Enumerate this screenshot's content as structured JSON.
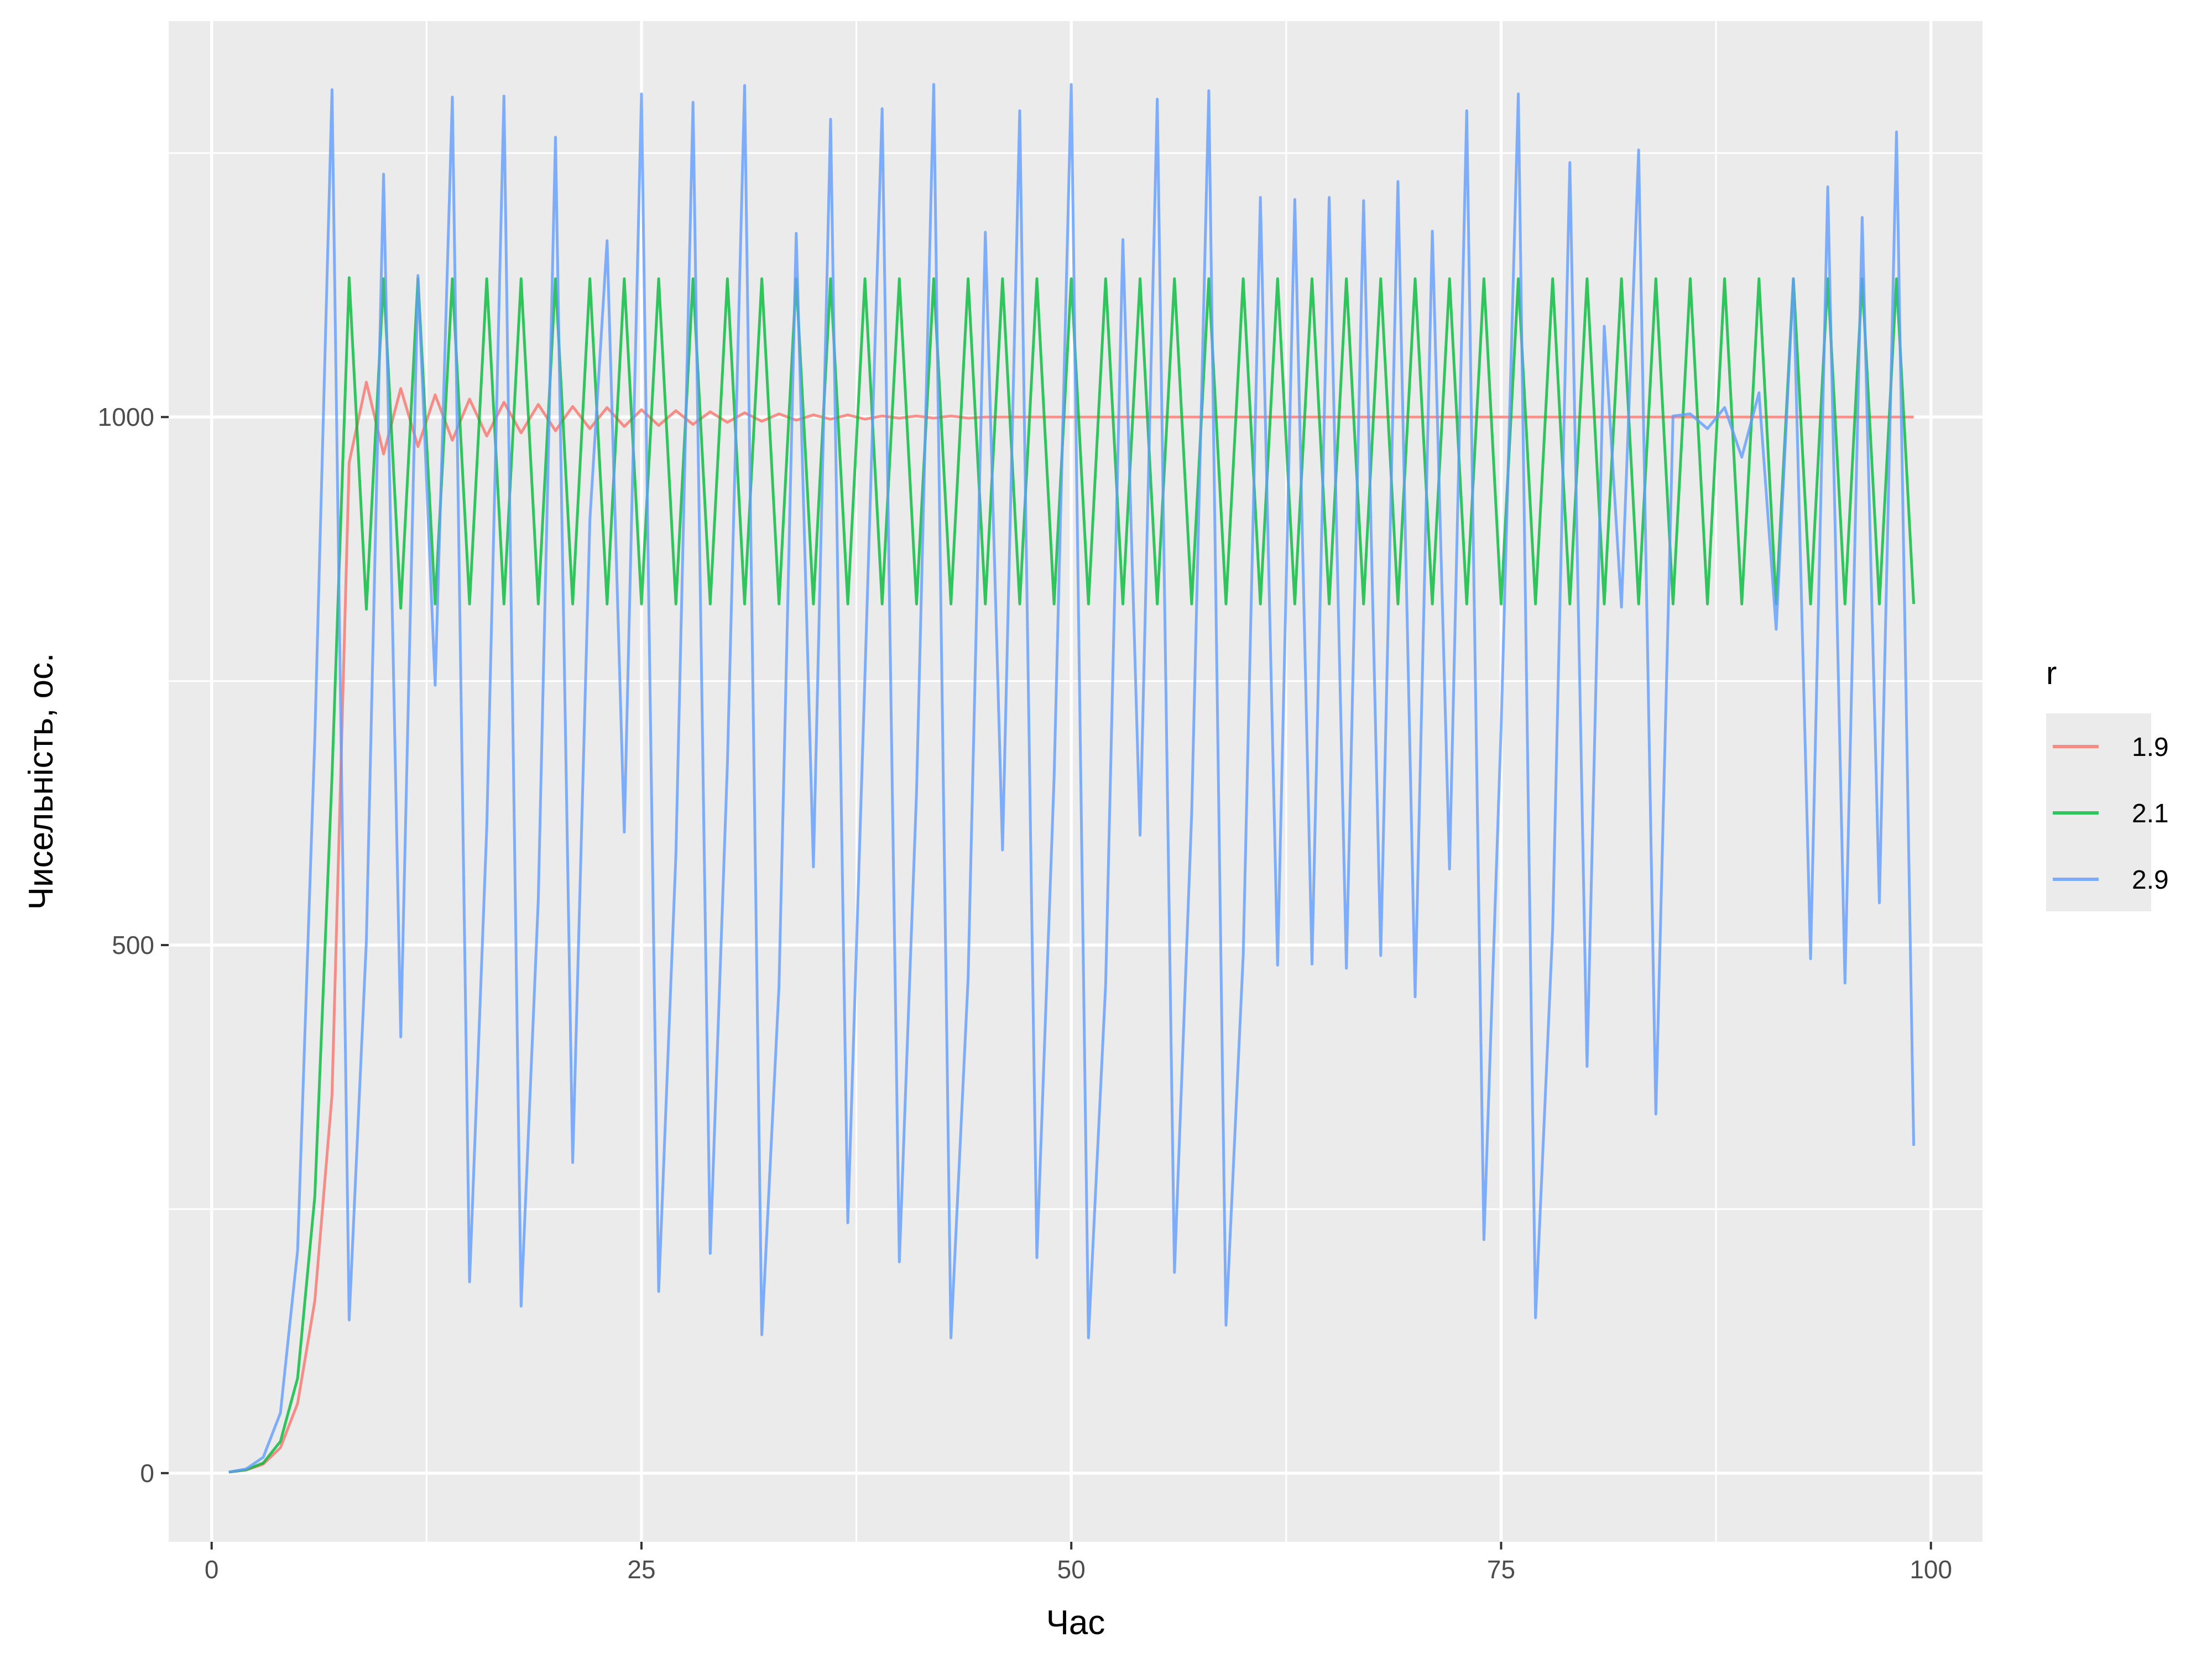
{
  "chart_data": {
    "type": "line",
    "title": "",
    "xlabel": "Час",
    "ylabel": "Чисельність, ос.",
    "xlim": [
      -2.5,
      103
    ],
    "ylim": [
      -65,
      1375
    ],
    "x_ticks": [
      0,
      25,
      50,
      75,
      100
    ],
    "x_tick_labels": [
      "0",
      "25",
      "50",
      "75",
      "100"
    ],
    "y_ticks": [
      0,
      500,
      1000
    ],
    "y_tick_labels": [
      "0",
      "500",
      "1000"
    ],
    "grid": true,
    "panel_background": "#ebebeb",
    "grid_color": "#ffffff",
    "legend": {
      "title": "r",
      "position": "right",
      "entries": [
        "1.9",
        "2.1",
        "2.9"
      ]
    },
    "x": [
      1,
      2,
      3,
      4,
      5,
      6,
      7,
      8,
      9,
      10,
      11,
      12,
      13,
      14,
      15,
      16,
      17,
      18,
      19,
      20,
      21,
      22,
      23,
      24,
      25,
      26,
      27,
      28,
      29,
      30,
      31,
      32,
      33,
      34,
      35,
      36,
      37,
      38,
      39,
      40,
      41,
      42,
      43,
      44,
      45,
      46,
      47,
      48,
      49,
      50,
      51,
      52,
      53,
      54,
      55,
      56,
      57,
      58,
      59,
      60,
      61,
      62,
      63,
      64,
      65,
      66,
      67,
      68,
      69,
      70,
      71,
      72,
      73,
      74,
      75,
      76,
      77,
      78,
      79,
      80,
      81,
      82,
      83,
      84,
      85,
      86,
      87,
      88,
      89,
      90,
      91,
      92,
      93,
      94,
      95,
      96,
      97,
      98,
      99
    ],
    "series": [
      {
        "name": "1.9",
        "color": "#f8766d",
        "values": [
          1,
          2.9,
          8.5,
          24,
          66,
          163,
          358,
          957,
          1033,
          965,
          1027,
          972,
          1021,
          978,
          1017,
          982,
          1014,
          985,
          1012,
          987,
          1010,
          989,
          1009,
          991,
          1007,
          992,
          1006,
          993,
          1005,
          995,
          1004,
          996,
          1003,
          997,
          1002,
          998,
          1002,
          998,
          1001,
          999,
          1001,
          999,
          1001,
          999,
          1000,
          1000,
          1000,
          1000,
          1000,
          1000,
          1000,
          1000,
          1000,
          1000,
          1000,
          1000,
          1000,
          1000,
          1000,
          1000,
          1000,
          1000,
          1000,
          1000,
          1000,
          1000,
          1000,
          1000,
          1000,
          1000,
          1000,
          1000,
          1000,
          1000,
          1000,
          1000,
          1000,
          1000,
          1000,
          1000,
          1000,
          1000,
          1000,
          1000,
          1000,
          1000,
          1000,
          1000,
          1000,
          1000,
          1000,
          1000,
          1000,
          1000,
          1000,
          1000,
          1000,
          1000,
          1000
        ]
      },
      {
        "name": "2.1",
        "color": "#00ba38",
        "values": [
          1,
          3.1,
          9.6,
          30,
          90,
          262,
          660,
          1132,
          818,
          1131,
          819,
          1131,
          823,
          1131,
          823,
          1131,
          823,
          1131,
          823,
          1131,
          823,
          1131,
          823,
          1131,
          823,
          1131,
          823,
          1131,
          823,
          1131,
          823,
          1131,
          823,
          1131,
          823,
          1131,
          823,
          1131,
          823,
          1131,
          823,
          1131,
          823,
          1131,
          823,
          1131,
          823,
          1131,
          823,
          1131,
          823,
          1131,
          823,
          1131,
          823,
          1131,
          823,
          1131,
          823,
          1131,
          823,
          1131,
          823,
          1131,
          823,
          1131,
          823,
          1131,
          823,
          1131,
          823,
          1131,
          823,
          1131,
          823,
          1131,
          823,
          1131,
          823,
          1131,
          823,
          1131,
          823,
          1131,
          823,
          1131,
          823,
          1131,
          823,
          1131,
          823,
          1131,
          823,
          1131,
          823,
          1131,
          823,
          1131,
          823
        ]
      },
      {
        "name": "2.9",
        "color": "#619cff",
        "values": [
          1,
          3.9,
          15,
          57,
          211,
          696,
          1310,
          145,
          504,
          1230,
          413,
          1134,
          746,
          1303,
          181,
          611,
          1304,
          158,
          543,
          1265,
          294,
          903,
          1167,
          607,
          1306,
          172,
          585,
          1298,
          208,
          672,
          1314,
          131,
          461,
          1174,
          574,
          1282,
          237,
          755,
          1292,
          200,
          645,
          1315,
          128,
          469,
          1175,
          590,
          1290,
          204,
          658,
          1315,
          128,
          463,
          1168,
          604,
          1301,
          190,
          624,
          1309,
          140,
          490,
          1208,
          481,
          1206,
          482,
          1208,
          478,
          1205,
          490,
          1223,
          451,
          1176,
          572,
          1290,
          221,
          706,
          1306,
          147,
          515,
          1241,
          385,
          1086,
          820,
          1253,
          340,
          1001,
          1003,
          989,
          1009,
          962,
          1023,
          799,
          1131,
          487,
          1218,
          464,
          1189,
          540,
          1270,
          310
        ]
      }
    ]
  }
}
